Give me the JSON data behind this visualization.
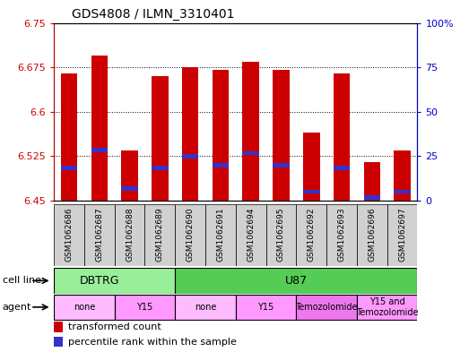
{
  "title": "GDS4808 / ILMN_3310401",
  "samples": [
    "GSM1062686",
    "GSM1062687",
    "GSM1062688",
    "GSM1062689",
    "GSM1062690",
    "GSM1062691",
    "GSM1062694",
    "GSM1062695",
    "GSM1062692",
    "GSM1062693",
    "GSM1062696",
    "GSM1062697"
  ],
  "red_values": [
    6.665,
    6.695,
    6.535,
    6.66,
    6.675,
    6.67,
    6.685,
    6.67,
    6.565,
    6.665,
    6.515,
    6.535
  ],
  "blue_values": [
    6.505,
    6.535,
    6.47,
    6.505,
    6.525,
    6.51,
    6.53,
    6.51,
    6.465,
    6.505,
    6.455,
    6.465
  ],
  "y_min": 6.45,
  "y_max": 6.75,
  "y_ticks_left": [
    6.45,
    6.525,
    6.6,
    6.675,
    6.75
  ],
  "y_ticks_right": [
    0,
    25,
    50,
    75,
    100
  ],
  "bar_width": 0.55,
  "bar_color": "#cc0000",
  "blue_color": "#3333cc",
  "legend_red": "transformed count",
  "legend_blue": "percentile rank within the sample",
  "cell_line_label": "cell line",
  "agent_label": "agent",
  "tick_color_left": "#cc0000",
  "tick_color_right": "#0000cc",
  "dbtrg_color": "#99ee99",
  "u87_color": "#55cc55",
  "agent_none_color": "#ffbbff",
  "agent_y15_color": "#ff99ff",
  "agent_temo_color": "#ee77ee",
  "agent_y15temo_color": "#ff99ff",
  "gray_bg": "#d0d0d0"
}
